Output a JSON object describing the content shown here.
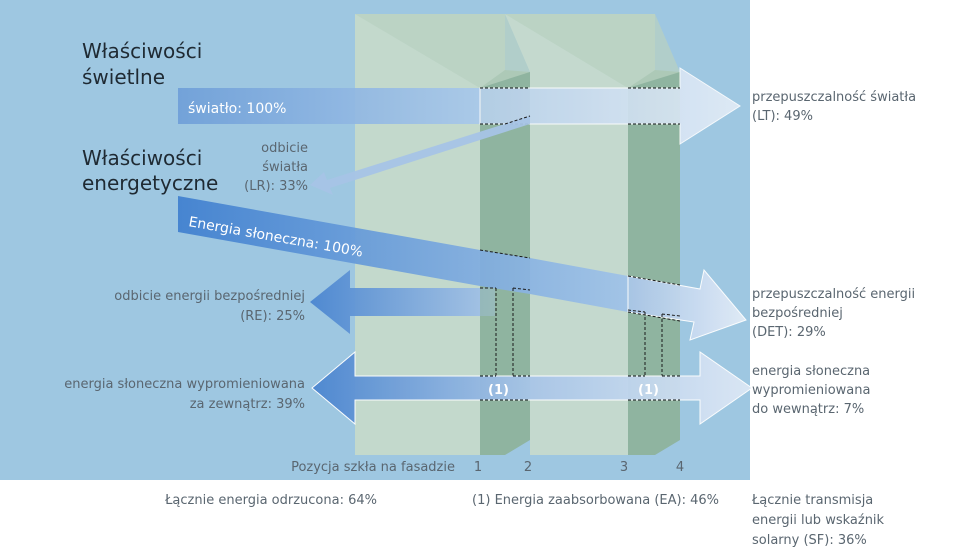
{
  "headings": {
    "light_properties": [
      "Właściwości",
      "świetlne"
    ],
    "energy_properties": [
      "Właściwości",
      "energetyczne"
    ]
  },
  "arrows": {
    "light_in": "światło: 100%",
    "solar_in": "Energia słoneczna: 100%",
    "absorbed_marker": "(1)"
  },
  "labels": {
    "light_reflection": [
      "odbicie",
      "światła",
      "(LR): 33%"
    ],
    "direct_reflection": [
      "odbicie energii bezpośredniej",
      "(RE): 25%"
    ],
    "radiated_outside": [
      "energia słoneczna wypromieniowana",
      "za zewnątrz: 39%"
    ],
    "light_transmission": [
      "przepuszczalność światła",
      "(LT): 49%"
    ],
    "direct_transmission": [
      "przepuszczalność energii",
      "bezpośredniej",
      "(DET): 29%"
    ],
    "radiated_inside": [
      "energia słoneczna",
      "wypromieniowana",
      "do wewnątrz: 7%"
    ]
  },
  "positions": {
    "label": "Pozycja szkła na fasadzie",
    "numbers": [
      "1",
      "2",
      "3",
      "4"
    ]
  },
  "footer": {
    "total_rejected": "Łącznie energia odrzucona: 64%",
    "absorbed": "(1) Energia zaabsorbowana (EA): 46%",
    "total_transmission": [
      "Łącznie transmisja",
      "energii lub wskaźnik",
      "solarny (SF): 36%"
    ]
  },
  "colors": {
    "background": "#9ec7e1",
    "pane_face": "#c3d8c8",
    "pane_edge": "#8fb4a0",
    "text_dark": "#1f2a33",
    "text_gray": "#5a6670"
  }
}
